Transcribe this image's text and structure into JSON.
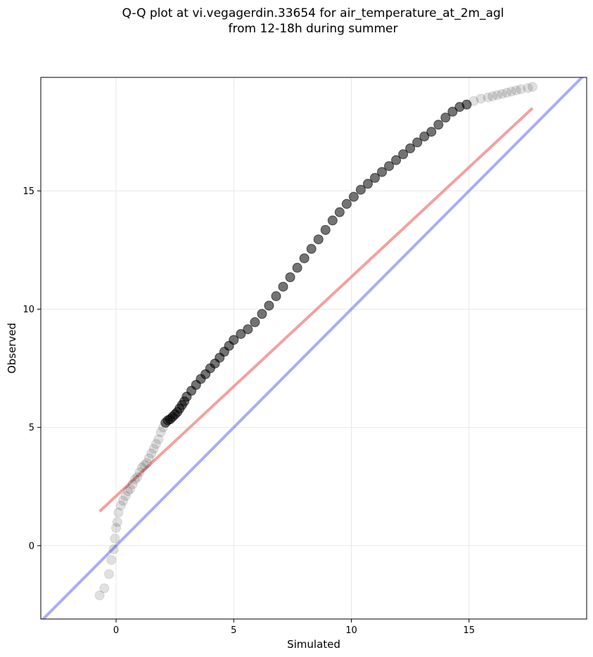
{
  "chart_data": {
    "type": "scatter",
    "title": "Q-Q plot at vi.vegagerdin.33654 for air_temperature_at_2m_agl",
    "subtitle": "from 12-18h during summer",
    "xlabel": "Simulated",
    "ylabel": "Observed",
    "xlim": [
      -3.2,
      20.0
    ],
    "ylim": [
      -3.1,
      19.8
    ],
    "xticks": [
      0,
      5,
      10,
      15
    ],
    "yticks": [
      0,
      5,
      10,
      15
    ],
    "grid": true,
    "colors": {
      "points": "#000000",
      "fit_line": "#f08080",
      "identity_line": "#8080f0",
      "grid": "#e8e8e8"
    },
    "identity_line": {
      "x": [
        -3.2,
        20.0
      ],
      "y": [
        -3.2,
        20.0
      ]
    },
    "fit_line": {
      "x": [
        -0.7,
        17.7
      ],
      "y": [
        1.45,
        18.5
      ]
    },
    "series": [
      {
        "x": [
          -0.7,
          -0.5,
          -0.3,
          -0.2,
          -0.1,
          -0.05,
          0.0,
          0.05,
          0.1,
          0.2,
          0.3,
          0.4,
          0.5,
          0.6,
          0.7,
          0.8,
          0.9,
          1.0,
          1.1,
          1.2,
          1.3,
          1.4,
          1.5,
          1.6,
          1.7,
          1.8,
          1.9,
          2.0,
          2.1,
          2.2,
          2.3,
          2.4,
          2.5,
          2.6,
          2.7,
          2.8,
          2.9,
          3.0,
          3.2,
          3.4,
          3.6,
          3.8,
          4.0,
          4.2,
          4.4,
          4.6,
          4.8,
          5.0,
          5.3,
          5.6,
          5.9,
          6.2,
          6.5,
          6.8,
          7.1,
          7.4,
          7.7,
          8.0,
          8.3,
          8.6,
          8.9,
          9.2,
          9.5,
          9.8,
          10.1,
          10.4,
          10.7,
          11.0,
          11.3,
          11.6,
          11.9,
          12.2,
          12.5,
          12.8,
          13.1,
          13.4,
          13.7,
          14.0,
          14.3,
          14.6,
          14.9,
          15.2,
          15.5,
          15.8,
          16.0,
          16.2,
          16.4,
          16.6,
          16.8,
          17.0,
          17.2,
          17.5,
          17.7
        ],
        "y": [
          -2.1,
          -1.8,
          -1.2,
          -0.6,
          -0.15,
          0.3,
          0.75,
          1.0,
          1.4,
          1.7,
          1.9,
          2.1,
          2.3,
          2.4,
          2.6,
          2.8,
          2.9,
          3.1,
          3.3,
          3.4,
          3.5,
          3.7,
          3.9,
          4.1,
          4.3,
          4.5,
          4.8,
          5.0,
          5.2,
          5.3,
          5.35,
          5.45,
          5.55,
          5.65,
          5.8,
          5.95,
          6.1,
          6.3,
          6.55,
          6.8,
          7.05,
          7.25,
          7.5,
          7.7,
          7.95,
          8.2,
          8.45,
          8.7,
          8.95,
          9.15,
          9.45,
          9.8,
          10.15,
          10.55,
          10.95,
          11.35,
          11.75,
          12.15,
          12.55,
          12.95,
          13.35,
          13.75,
          14.1,
          14.45,
          14.75,
          15.05,
          15.3,
          15.55,
          15.8,
          16.05,
          16.3,
          16.55,
          16.8,
          17.05,
          17.3,
          17.5,
          17.8,
          18.1,
          18.35,
          18.55,
          18.65,
          18.8,
          18.9,
          18.95,
          19.0,
          19.05,
          19.1,
          19.15,
          19.2,
          19.25,
          19.3,
          19.35,
          19.4
        ]
      }
    ]
  }
}
